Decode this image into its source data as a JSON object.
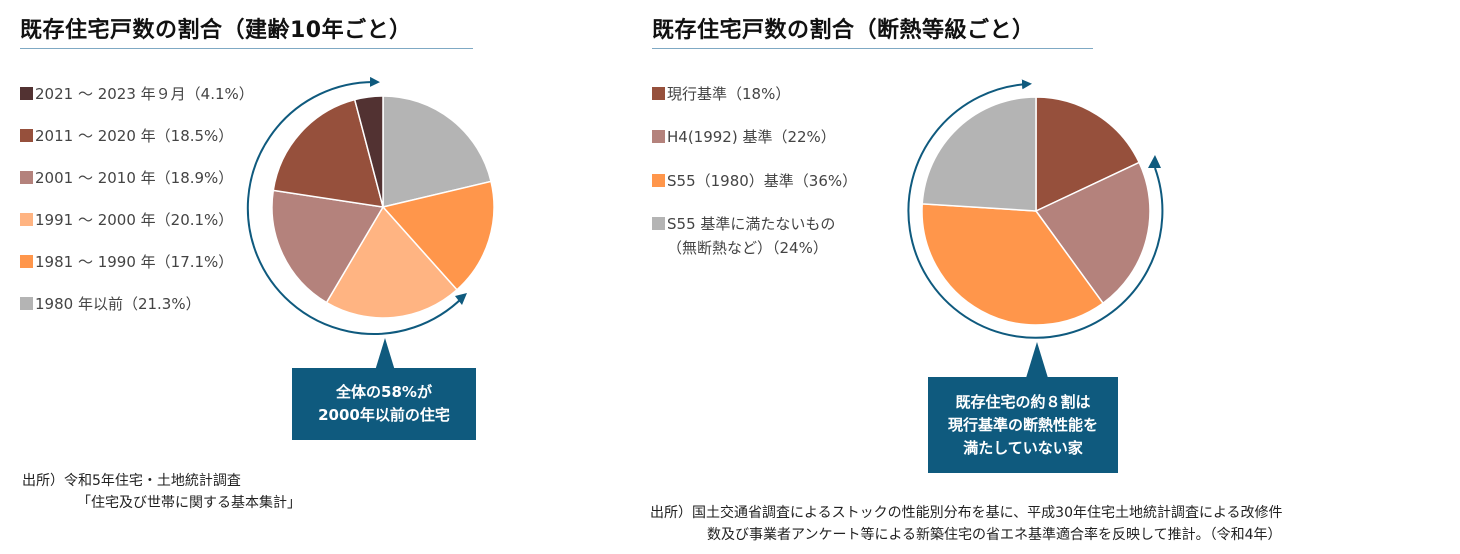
{
  "left": {
    "title": "既存住宅戸数の割合（建齢10年ごと）",
    "legend": [
      {
        "label": "2021 〜 2023 年９月（4.1%）",
        "color": "#523232"
      },
      {
        "label": "2011 〜 2020 年（18.5%）",
        "color": "#96503c"
      },
      {
        "label": "2001 〜 2010 年（18.9%）",
        "color": "#b4827c"
      },
      {
        "label": "1991 〜 2000 年（20.1%）",
        "color": "#ffb482"
      },
      {
        "label": "1981 〜 1990 年（17.1%）",
        "color": "#ff964b"
      },
      {
        "label": "1980 年以前（21.3%）",
        "color": "#b4b4b4"
      }
    ],
    "callout": {
      "line1": "全体の58%が",
      "line2": "2000年以前の住宅"
    },
    "source": {
      "line1": "出所）令和5年住宅・土地統計調査",
      "line2": "「住宅及び世帯に関する基本集計」"
    }
  },
  "right": {
    "title": "既存住宅戸数の割合（断熱等級ごと）",
    "legend": [
      {
        "label": "現行基準（18%）",
        "color": "#96503c"
      },
      {
        "label": "H4(1992) 基準（22%）",
        "color": "#b4827c"
      },
      {
        "label": "S55（1980）基準（36%）",
        "color": "#ff964b"
      },
      {
        "label": "S55 基準に満たないもの",
        "label2": "（無断熱など）（24%）",
        "color": "#b4b4b4"
      }
    ],
    "callout": {
      "line1": "既存住宅の約８割は",
      "line2": "現行基準の断熱性能を",
      "line3": "満たしていない家"
    },
    "source": {
      "line1": "出所）国土交通省調査によるストックの性能別分布を基に、平成30年住宅土地統計調査による改修件",
      "line2": "数及び事業者アンケート等による新築住宅の省エネ基準適合率を反映して推計。（令和4年）"
    }
  },
  "colors": {
    "accent": "#0f5a7e",
    "underline": "#7fa9c4"
  },
  "chart_data": [
    {
      "type": "pie",
      "title": "既存住宅戸数の割合（建齢10年ごと）",
      "start": "12 o'clock, clockwise",
      "categories": [
        "1980 年以前",
        "1981 〜 1990 年",
        "1991 〜 2000 年",
        "2001 〜 2010 年",
        "2011 〜 2020 年",
        "2021 〜 2023 年９月"
      ],
      "values": [
        21.3,
        17.1,
        20.1,
        18.9,
        18.5,
        4.1
      ],
      "colors": [
        "#b4b4b4",
        "#ff964b",
        "#ffb482",
        "#b4827c",
        "#96503c",
        "#523232"
      ],
      "annotation": "全体の58%が2000年以前の住宅",
      "legend_position": "left"
    },
    {
      "type": "pie",
      "title": "既存住宅戸数の割合（断熱等級ごと）",
      "start": "12 o'clock, clockwise",
      "categories": [
        "現行基準",
        "H4(1992) 基準",
        "S55（1980）基準",
        "S55 基準に満たないもの（無断熱など）"
      ],
      "values": [
        18,
        22,
        36,
        24
      ],
      "colors": [
        "#96503c",
        "#b4827c",
        "#ff964b",
        "#b4b4b4"
      ],
      "annotation": "既存住宅の約８割は現行基準の断熱性能を満たしていない家",
      "legend_position": "left"
    }
  ]
}
